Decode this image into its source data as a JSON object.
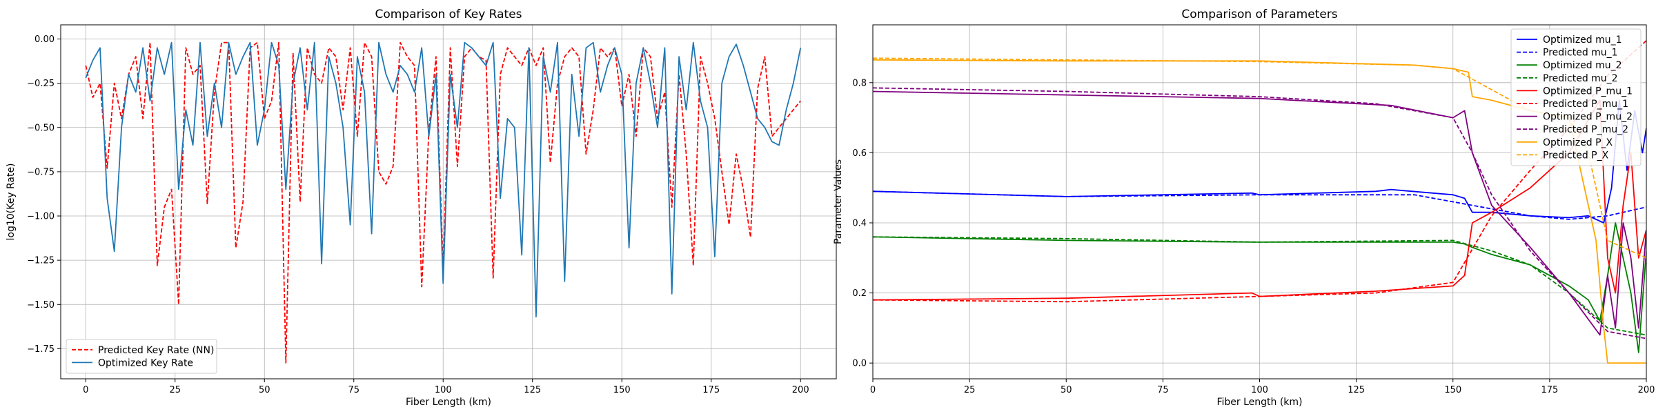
{
  "chart_data": [
    {
      "type": "line",
      "title": "Comparison of Key Rates",
      "xlabel": "Fiber Length (km)",
      "ylabel": "log10(Key Rate)",
      "xlim": [
        -7,
        210
      ],
      "ylim": [
        -1.92,
        0.08
      ],
      "xticks": [
        0,
        25,
        50,
        75,
        100,
        125,
        150,
        175,
        200
      ],
      "yticks": [
        0.0,
        -0.25,
        -0.5,
        -0.75,
        -1.0,
        -1.25,
        -1.5,
        -1.75
      ],
      "ytick_labels": [
        "0.00",
        "−0.25",
        "−0.50",
        "−0.75",
        "−1.00",
        "−1.25",
        "−1.50",
        "−1.75"
      ],
      "grid": true,
      "legend_position": "lower-left",
      "series": [
        {
          "name": "Predicted Key Rate (NN)",
          "color": "#ff0000",
          "dash": "dashed",
          "x": [
            0,
            2,
            4,
            6,
            8,
            10,
            12,
            14,
            16,
            18,
            20,
            22,
            24,
            26,
            28,
            30,
            32,
            34,
            36,
            38,
            40,
            42,
            44,
            46,
            48,
            50,
            52,
            54,
            56,
            58,
            60,
            62,
            64,
            66,
            68,
            70,
            72,
            74,
            76,
            78,
            80,
            82,
            84,
            86,
            88,
            90,
            92,
            94,
            96,
            98,
            100,
            102,
            104,
            106,
            108,
            110,
            112,
            114,
            116,
            118,
            120,
            122,
            124,
            126,
            128,
            130,
            132,
            134,
            136,
            138,
            140,
            142,
            144,
            146,
            148,
            150,
            152,
            154,
            156,
            158,
            160,
            162,
            164,
            166,
            168,
            170,
            172,
            174,
            176,
            178,
            180,
            182,
            184,
            186,
            188,
            190,
            192,
            194,
            196,
            198,
            200
          ],
          "y": [
            -0.15,
            -0.33,
            -0.25,
            -0.73,
            -0.25,
            -0.45,
            -0.2,
            -0.1,
            -0.45,
            -0.02,
            -1.28,
            -0.95,
            -0.85,
            -1.5,
            -0.05,
            -0.2,
            -0.15,
            -0.93,
            -0.3,
            -0.02,
            -0.02,
            -1.18,
            -0.92,
            -0.05,
            -0.02,
            -0.45,
            -0.35,
            -0.02,
            -1.83,
            -0.08,
            -0.92,
            -0.05,
            -0.2,
            -0.25,
            -0.05,
            -0.1,
            -0.4,
            -0.05,
            -0.55,
            -0.02,
            -0.1,
            -0.75,
            -0.82,
            -0.72,
            -0.02,
            -0.1,
            -0.15,
            -1.4,
            -0.52,
            -0.1,
            -1.3,
            -0.05,
            -0.72,
            -0.1,
            -0.05,
            -0.1,
            -0.12,
            -1.35,
            -0.2,
            -0.05,
            -0.1,
            -0.15,
            -0.05,
            -0.15,
            -0.05,
            -0.7,
            -0.25,
            -0.1,
            -0.05,
            -0.1,
            -0.65,
            -0.4,
            -0.05,
            -0.1,
            -0.05,
            -0.38,
            -0.2,
            -0.55,
            -0.05,
            -0.1,
            -0.45,
            -0.3,
            -0.95,
            -0.2,
            -0.65,
            -1.28,
            -0.1,
            -0.25,
            -0.45,
            -0.75,
            -1.05,
            -0.65,
            -0.85,
            -1.12,
            -0.28,
            -0.1,
            -0.55,
            -0.5,
            -0.45,
            -0.4,
            -0.35
          ]
        },
        {
          "name": "Optimized Key Rate",
          "color": "#1f77b4",
          "dash": "solid",
          "x": [
            0,
            2,
            4,
            6,
            8,
            10,
            12,
            14,
            16,
            18,
            20,
            22,
            24,
            26,
            28,
            30,
            32,
            34,
            36,
            38,
            40,
            42,
            44,
            46,
            48,
            50,
            52,
            54,
            56,
            58,
            60,
            62,
            64,
            66,
            68,
            70,
            72,
            74,
            76,
            78,
            80,
            82,
            84,
            86,
            88,
            90,
            92,
            94,
            96,
            98,
            100,
            102,
            104,
            106,
            108,
            110,
            112,
            114,
            116,
            118,
            120,
            122,
            124,
            126,
            128,
            130,
            132,
            134,
            136,
            138,
            140,
            142,
            144,
            146,
            148,
            150,
            152,
            154,
            156,
            158,
            160,
            162,
            164,
            166,
            168,
            170,
            172,
            174,
            176,
            178,
            180,
            182,
            184,
            186,
            188,
            190,
            192,
            194,
            196,
            198,
            200
          ],
          "y": [
            -0.22,
            -0.12,
            -0.05,
            -0.9,
            -1.2,
            -0.5,
            -0.2,
            -0.3,
            -0.05,
            -0.35,
            -0.05,
            -0.2,
            -0.02,
            -0.85,
            -0.4,
            -0.6,
            -0.02,
            -0.55,
            -0.25,
            -0.5,
            -0.02,
            -0.2,
            -0.1,
            -0.02,
            -0.6,
            -0.4,
            -0.02,
            -0.15,
            -0.85,
            -0.25,
            -0.05,
            -0.4,
            -0.02,
            -1.27,
            -0.1,
            -0.25,
            -0.5,
            -1.05,
            -0.1,
            -0.3,
            -1.1,
            -0.02,
            -0.2,
            -0.3,
            -0.15,
            -0.2,
            -0.3,
            -0.05,
            -0.55,
            -0.2,
            -1.38,
            -0.2,
            -0.5,
            -0.02,
            -0.05,
            -0.1,
            -0.15,
            -0.02,
            -0.9,
            -0.45,
            -0.5,
            -1.22,
            -0.05,
            -1.57,
            -0.1,
            -0.3,
            -0.02,
            -1.37,
            -0.2,
            -0.55,
            -0.05,
            -0.02,
            -0.3,
            -0.15,
            -0.05,
            -0.2,
            -1.18,
            -0.25,
            -0.05,
            -0.25,
            -0.5,
            -0.05,
            -1.44,
            -0.1,
            -0.4,
            -0.02,
            -0.35,
            -0.5,
            -1.23,
            -0.25,
            -0.1,
            -0.03,
            -0.15,
            -0.3,
            -0.45,
            -0.5,
            -0.58,
            -0.6,
            -0.4,
            -0.25,
            -0.05
          ]
        }
      ]
    },
    {
      "type": "line",
      "title": "Comparison of Parameters",
      "xlabel": "Fiber Length (km)",
      "ylabel": "Parameter Values",
      "xlim": [
        0,
        200
      ],
      "ylim": [
        -0.045,
        0.965
      ],
      "xticks": [
        0,
        25,
        50,
        75,
        100,
        125,
        150,
        175,
        200
      ],
      "yticks": [
        0.0,
        0.2,
        0.4,
        0.6,
        0.8
      ],
      "ytick_labels": [
        "0.0",
        "0.2",
        "0.4",
        "0.6",
        "0.8"
      ],
      "grid": true,
      "legend_position": "top-right",
      "series": [
        {
          "name": "Optimized mu_1",
          "color": "#0000ff",
          "dash": "solid",
          "x": [
            0,
            50,
            98,
            100,
            130,
            134,
            150,
            153,
            155,
            160,
            170,
            180,
            185,
            189,
            191,
            193,
            195,
            197,
            199,
            200
          ],
          "y": [
            0.49,
            0.475,
            0.485,
            0.48,
            0.49,
            0.495,
            0.48,
            0.47,
            0.43,
            0.43,
            0.42,
            0.415,
            0.42,
            0.4,
            0.5,
            0.75,
            0.55,
            0.72,
            0.6,
            0.67
          ]
        },
        {
          "name": "Predicted mu_1",
          "color": "#0000ff",
          "dash": "dashed",
          "x": [
            0,
            50,
            100,
            140,
            150,
            160,
            170,
            180,
            190,
            200
          ],
          "y": [
            0.49,
            0.475,
            0.48,
            0.48,
            0.46,
            0.44,
            0.42,
            0.41,
            0.42,
            0.445
          ]
        },
        {
          "name": "Optimized mu_2",
          "color": "#008000",
          "dash": "solid",
          "x": [
            0,
            50,
            98,
            100,
            150,
            153,
            155,
            160,
            170,
            175,
            180,
            185,
            188,
            190,
            192,
            194,
            196,
            198,
            200
          ],
          "y": [
            0.36,
            0.35,
            0.345,
            0.345,
            0.345,
            0.34,
            0.33,
            0.31,
            0.28,
            0.25,
            0.22,
            0.18,
            0.12,
            0.25,
            0.4,
            0.3,
            0.2,
            0.03,
            0.32
          ]
        },
        {
          "name": "Predicted mu_2",
          "color": "#008000",
          "dash": "dashed",
          "x": [
            0,
            50,
            100,
            150,
            160,
            170,
            180,
            190,
            200
          ],
          "y": [
            0.36,
            0.355,
            0.345,
            0.35,
            0.32,
            0.28,
            0.2,
            0.1,
            0.08
          ]
        },
        {
          "name": "Optimized P_mu_1",
          "color": "#ff0000",
          "dash": "solid",
          "x": [
            0,
            50,
            98,
            100,
            130,
            150,
            153,
            155,
            160,
            170,
            180,
            188,
            190,
            192,
            194,
            196,
            198,
            200
          ],
          "y": [
            0.18,
            0.185,
            0.2,
            0.19,
            0.205,
            0.22,
            0.25,
            0.4,
            0.43,
            0.5,
            0.6,
            0.75,
            0.3,
            0.2,
            0.45,
            0.6,
            0.3,
            0.38
          ]
        },
        {
          "name": "Predicted P_mu_1",
          "color": "#ff0000",
          "dash": "dashed",
          "x": [
            0,
            50,
            100,
            130,
            150,
            160,
            170,
            180,
            190,
            200
          ],
          "y": [
            0.18,
            0.175,
            0.19,
            0.2,
            0.23,
            0.42,
            0.55,
            0.67,
            0.82,
            0.92
          ]
        },
        {
          "name": "Optimized P_mu_2",
          "color": "#800080",
          "dash": "solid",
          "x": [
            0,
            50,
            100,
            134,
            150,
            153,
            155,
            160,
            170,
            180,
            188,
            190,
            192,
            194,
            196,
            198,
            200
          ],
          "y": [
            0.775,
            0.765,
            0.755,
            0.735,
            0.7,
            0.72,
            0.6,
            0.45,
            0.33,
            0.2,
            0.08,
            0.25,
            0.1,
            0.4,
            0.3,
            0.1,
            0.38
          ]
        },
        {
          "name": "Predicted P_mu_2",
          "color": "#800080",
          "dash": "dashed",
          "x": [
            0,
            50,
            100,
            130,
            150,
            155,
            160,
            170,
            180,
            190,
            200
          ],
          "y": [
            0.785,
            0.775,
            0.76,
            0.74,
            0.7,
            0.6,
            0.48,
            0.32,
            0.2,
            0.09,
            0.07
          ]
        },
        {
          "name": "Optimized P_X",
          "color": "#ffa500",
          "dash": "solid",
          "x": [
            0,
            50,
            100,
            140,
            150,
            154,
            155,
            160,
            170,
            180,
            185,
            187,
            189,
            190,
            200
          ],
          "y": [
            0.865,
            0.862,
            0.862,
            0.85,
            0.84,
            0.83,
            0.76,
            0.75,
            0.72,
            0.7,
            0.45,
            0.35,
            0.1,
            0.0,
            0.0
          ]
        },
        {
          "name": "Predicted P_X",
          "color": "#ffa500",
          "dash": "dashed",
          "x": [
            0,
            50,
            100,
            140,
            150,
            160,
            170,
            180,
            185,
            190,
            200
          ],
          "y": [
            0.87,
            0.865,
            0.86,
            0.85,
            0.84,
            0.78,
            0.72,
            0.7,
            0.6,
            0.35,
            0.3
          ]
        }
      ]
    }
  ]
}
